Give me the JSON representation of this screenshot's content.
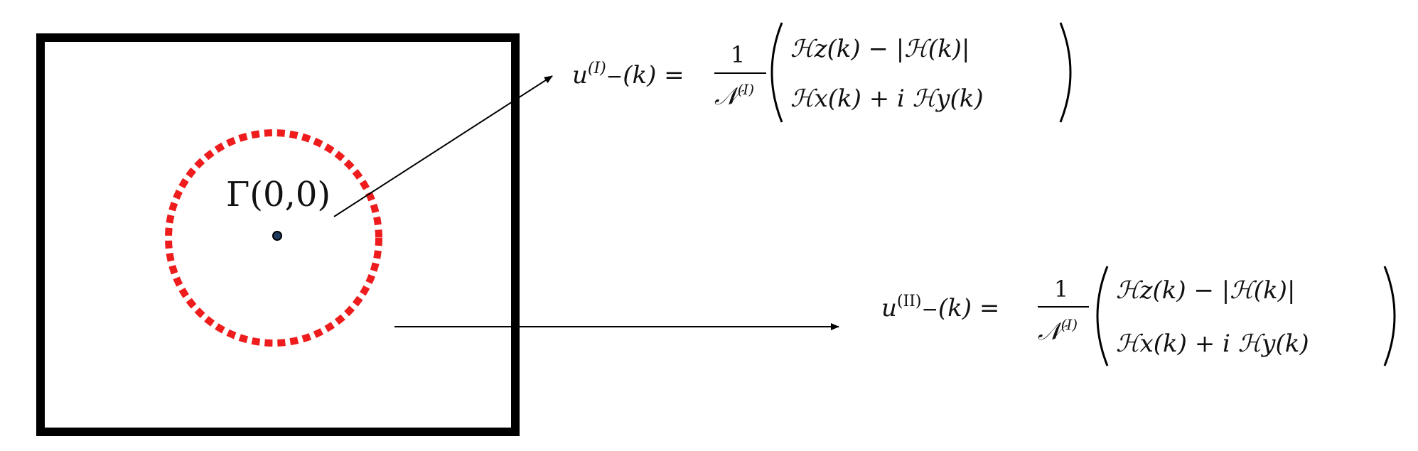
{
  "point_label": "Γ(0,0)",
  "eq1": {
    "u": "u",
    "sup": "(I)",
    "sub": "−",
    "arg": "(k) =",
    "num": "1",
    "den": "𝒩",
    "den_sup": "(I)",
    "row1": "ℋz(k) − |ℋ(k)|",
    "row2": "ℋx(k) + i ℋy(k)"
  },
  "eq2": {
    "u": "u",
    "sup": "(II)",
    "sub": "−",
    "arg": "(k) =",
    "num": "1",
    "den": "𝒩",
    "den_sup": "(I)",
    "row1": "ℋz(k) − |ℋ(k)|",
    "row2": "ℋx(k) + i ℋy(k)"
  },
  "colors": {
    "frame": "#000000",
    "circle": "#ee1c1c",
    "center_dot": "#1f3a5f"
  }
}
